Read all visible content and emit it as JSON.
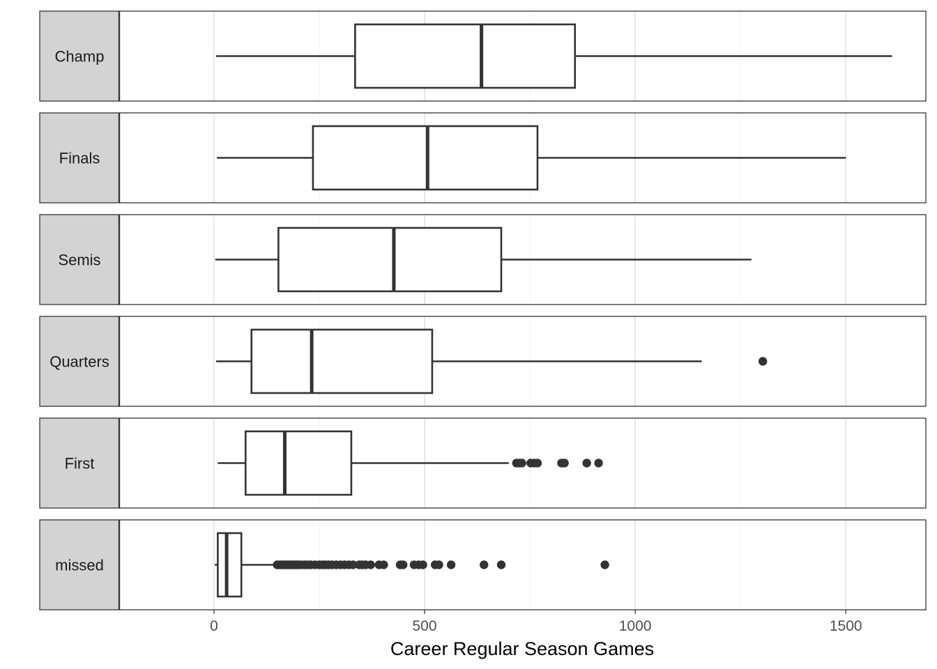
{
  "chart_data": {
    "type": "boxplot",
    "orientation": "horizontal",
    "xlabel": "Career Regular Season Games",
    "xlim": [
      -225,
      1690
    ],
    "x_ticks": [
      0,
      500,
      1000,
      1500
    ],
    "grid": true,
    "colors": {
      "strip_fill": "#d3d3d3",
      "box_stroke": "#333333",
      "grid_major": "#e2e2e2",
      "grid_minor": "#f1f1f1",
      "point": "#333333"
    },
    "groups": [
      {
        "label": "Champ",
        "whisker_low": 5,
        "q1": 335,
        "median": 635,
        "q3": 857,
        "whisker_high": 1610,
        "outliers": []
      },
      {
        "label": "Finals",
        "whisker_low": 7,
        "q1": 235,
        "median": 507,
        "q3": 768,
        "whisker_high": 1500,
        "outliers": []
      },
      {
        "label": "Semis",
        "whisker_low": 3,
        "q1": 153,
        "median": 427,
        "q3": 682,
        "whisker_high": 1276,
        "outliers": []
      },
      {
        "label": "Quarters",
        "whisker_low": 5,
        "q1": 89,
        "median": 232,
        "q3": 518,
        "whisker_high": 1158,
        "outliers": [
          1303
        ]
      },
      {
        "label": "First",
        "whisker_low": 9,
        "q1": 75,
        "median": 168,
        "q3": 326,
        "whisker_high": 700,
        "outliers": [
          718,
          725,
          731,
          752,
          760,
          768,
          825,
          832,
          885,
          913
        ]
      },
      {
        "label": "missed",
        "whisker_low": 2,
        "q1": 9,
        "median": 30,
        "q3": 65,
        "whisker_high": 145,
        "outliers": [
          150,
          155,
          160,
          165,
          170,
          175,
          180,
          185,
          190,
          195,
          200,
          207,
          215,
          222,
          230,
          240,
          250,
          258,
          265,
          272,
          280,
          290,
          300,
          310,
          320,
          330,
          345,
          352,
          360,
          372,
          392,
          403,
          442,
          449,
          475,
          486,
          496,
          525,
          534,
          563,
          641,
          682,
          928
        ]
      }
    ]
  }
}
